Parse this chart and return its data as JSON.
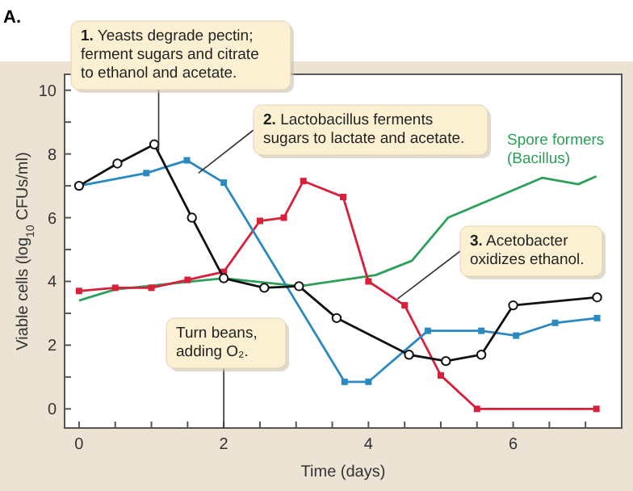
{
  "chart_data": {
    "type": "line",
    "title": "A.",
    "xlabel": "Time (days)",
    "ylabel": "Viable cells (log$_{10}$ CFUs/ml)",
    "xlim": [
      -0.2,
      7.5
    ],
    "ylim": [
      -0.6,
      10.5
    ],
    "xticks": [
      0,
      {
        "value": 0.5,
        "label": null
      },
      {
        "value": 1,
        "label": null
      },
      {
        "value": 1.5,
        "label": null
      },
      2,
      {
        "value": 2.5,
        "label": null
      },
      {
        "value": 3,
        "label": null
      },
      {
        "value": 3.5,
        "label": null
      },
      4,
      {
        "value": 4.5,
        "label": null
      },
      {
        "value": 5,
        "label": null
      },
      {
        "value": 5.5,
        "label": null
      },
      6,
      {
        "value": 6.5,
        "label": null
      },
      {
        "value": 7,
        "label": null
      }
    ],
    "yticks": [
      0,
      {
        "value": 1,
        "label": null
      },
      2,
      {
        "value": 3,
        "label": null
      },
      4,
      {
        "value": 5,
        "label": null
      },
      6,
      {
        "value": 7,
        "label": null
      },
      8,
      {
        "value": 9,
        "label": null
      },
      10
    ],
    "grid": false,
    "ref_lines": [
      {
        "axis": "x",
        "value": 2,
        "label": "Turn beans, adding O₂."
      }
    ],
    "series": [
      {
        "color": "#2ca05a",
        "marker": "none",
        "name": "Spore formers (Bacillus)",
        "x": [
          0,
          0.5,
          2,
          3.05,
          4.1,
          4.6,
          5.1,
          6.4,
          6.9,
          7.15
        ],
        "values": [
          3.4,
          3.75,
          4.1,
          3.85,
          4.2,
          4.65,
          6.0,
          7.25,
          7.05,
          7.3
        ]
      },
      {
        "color": "#d8203c",
        "marker": "square",
        "x": [
          0,
          0.5,
          1,
          1.5,
          2,
          2.5,
          2.83,
          3.1,
          3.65,
          4,
          4.5,
          5,
          5.5,
          7.15
        ],
        "values": [
          3.7,
          3.8,
          3.8,
          4.05,
          4.3,
          5.9,
          6.0,
          7.15,
          6.65,
          4.0,
          3.25,
          1.05,
          0,
          0
        ]
      },
      {
        "color": "#2a8ac0",
        "marker": "square",
        "x": [
          0,
          0.93,
          1.49,
          2.0,
          3.67,
          4.0,
          4.82,
          5.56,
          6.04,
          6.58,
          7.16
        ],
        "values": [
          7.0,
          7.4,
          7.8,
          7.1,
          0.85,
          0.85,
          2.45,
          2.45,
          2.3,
          2.7,
          2.85
        ]
      },
      {
        "color": "#111111",
        "marker": "circle",
        "x": [
          0,
          0.53,
          1.04,
          1.56,
          2.0,
          2.56,
          3.04,
          3.56,
          4.56,
          5.07,
          5.56,
          6.0,
          7.16
        ],
        "values": [
          7.0,
          7.7,
          8.3,
          6.0,
          4.1,
          3.8,
          3.85,
          2.85,
          1.7,
          1.5,
          1.7,
          3.25,
          3.5
        ]
      }
    ],
    "annotations": [
      {
        "text": "1. Yeasts degrade pectin; ferment sugars and citrate to ethanol and acetate.",
        "x": 1.1,
        "y": 8.1
      },
      {
        "text": "2. Lactobacillus ferments sugars to lactate and acetate.",
        "x": 1.65,
        "y": 7.4
      },
      {
        "text": "3. Acetobacter oxidizes ethanol.",
        "x": 4.4,
        "y": 3.45
      }
    ]
  }
}
